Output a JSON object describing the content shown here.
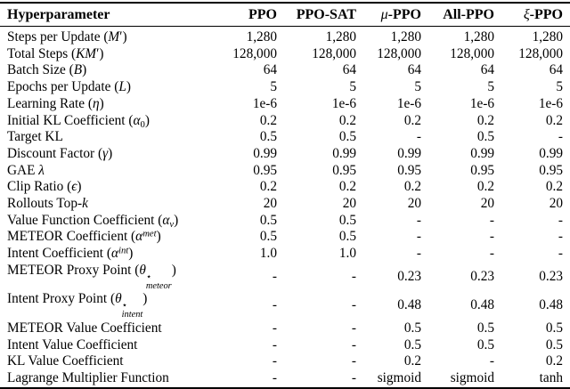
{
  "table": {
    "columns": [
      {
        "label_html": "Hyperparameter"
      },
      {
        "label_html": "PPO"
      },
      {
        "label_html": "PPO-SAT"
      },
      {
        "label_html": "<i>μ</i>-PPO"
      },
      {
        "label_html": "All-PPO"
      },
      {
        "label_html": "<i>ξ</i>-PPO"
      }
    ],
    "rows": [
      {
        "label_html": "Steps per Update (<i>M</i>′)",
        "values": [
          "1,280",
          "1,280",
          "1,280",
          "1,280",
          "1,280"
        ]
      },
      {
        "label_html": "Total Steps (<i>KM</i>′)",
        "values": [
          "128,000",
          "128,000",
          "128,000",
          "128,000",
          "128,000"
        ]
      },
      {
        "label_html": "Batch Size (<i>B</i>)",
        "values": [
          "64",
          "64",
          "64",
          "64",
          "64"
        ]
      },
      {
        "label_html": "Epochs per Update (<i>L</i>)",
        "values": [
          "5",
          "5",
          "5",
          "5",
          "5"
        ]
      },
      {
        "label_html": "Learning Rate (<i>η</i>)",
        "values": [
          "1e-6",
          "1e-6",
          "1e-6",
          "1e-6",
          "1e-6"
        ]
      },
      {
        "label_html": "Initial KL Coefficient (<i>α</i><sub>0</sub>)",
        "values": [
          "0.2",
          "0.2",
          "0.2",
          "0.2",
          "0.2"
        ]
      },
      {
        "label_html": "Target KL",
        "values": [
          "0.5",
          "0.5",
          "-",
          "0.5",
          "-"
        ]
      },
      {
        "label_html": "Discount Factor (<i>γ</i>)",
        "values": [
          "0.99",
          "0.99",
          "0.99",
          "0.99",
          "0.99"
        ]
      },
      {
        "label_html": "GAE <i>λ</i>",
        "values": [
          "0.95",
          "0.95",
          "0.95",
          "0.95",
          "0.95"
        ]
      },
      {
        "label_html": "Clip Ratio (<i>ϵ</i>)",
        "values": [
          "0.2",
          "0.2",
          "0.2",
          "0.2",
          "0.2"
        ]
      },
      {
        "label_html": "Rollouts Top-<i>k</i>",
        "values": [
          "20",
          "20",
          "20",
          "20",
          "20"
        ]
      },
      {
        "label_html": "Value Function Coefficient (<i>α<sub>v</sub></i>)",
        "values": [
          "0.5",
          "0.5",
          "-",
          "-",
          "-"
        ]
      },
      {
        "label_html": "METEOR Coefficient (<i>α<sup>met</sup></i>)",
        "values": [
          "0.5",
          "0.5",
          "-",
          "-",
          "-"
        ]
      },
      {
        "label_html": "Intent Coefficient (<i>α<sup>int</sup></i>)",
        "values": [
          "1.0",
          "1.0",
          "-",
          "-",
          "-"
        ]
      },
      {
        "label_html": "METEOR Proxy Point (<i>θ</i><span class='ss'><span>⋆</span><span><i>meteor</i></span></span>)",
        "values": [
          "-",
          "-",
          "0.23",
          "0.23",
          "0.23"
        ]
      },
      {
        "label_html": "Intent Proxy Point (<i>θ</i><span class='ss'><span>⋆</span><span><i>intent</i></span></span>)",
        "values": [
          "-",
          "-",
          "0.48",
          "0.48",
          "0.48"
        ]
      },
      {
        "label_html": "METEOR Value Coefficient",
        "values": [
          "-",
          "-",
          "0.5",
          "0.5",
          "0.5"
        ]
      },
      {
        "label_html": "Intent Value Coefficient",
        "values": [
          "-",
          "-",
          "0.5",
          "0.5",
          "0.5"
        ]
      },
      {
        "label_html": "KL Value Coefficient",
        "values": [
          "-",
          "-",
          "0.2",
          "-",
          "0.2"
        ]
      },
      {
        "label_html": "Lagrange Multiplier Function",
        "values": [
          "-",
          "-",
          "sigmoid",
          "sigmoid",
          "tanh"
        ]
      }
    ]
  }
}
